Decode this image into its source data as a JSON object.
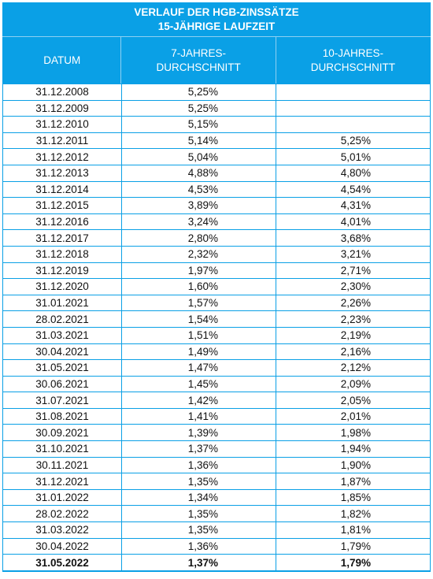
{
  "title": {
    "line1": "VERLAUF DER HGB-ZINSSÄTZE",
    "line2": "15-JÄHRIGE LAUFZEIT"
  },
  "columns": {
    "date": "DATUM",
    "avg7_line1": "7-JAHRES-",
    "avg7_line2": "DURCHSCHNITT",
    "avg10_line1": "10-JAHRES-",
    "avg10_line2": "DURCHSCHNITT"
  },
  "rows": [
    {
      "date": "31.12.2008",
      "avg7": "5,25%",
      "avg10": ""
    },
    {
      "date": "31.12.2009",
      "avg7": "5,25%",
      "avg10": ""
    },
    {
      "date": "31.12.2010",
      "avg7": "5,15%",
      "avg10": ""
    },
    {
      "date": "31.12.2011",
      "avg7": "5,14%",
      "avg10": "5,25%"
    },
    {
      "date": "31.12.2012",
      "avg7": "5,04%",
      "avg10": "5,01%"
    },
    {
      "date": "31.12.2013",
      "avg7": "4,88%",
      "avg10": "4,80%"
    },
    {
      "date": "31.12.2014",
      "avg7": "4,53%",
      "avg10": "4,54%"
    },
    {
      "date": "31.12.2015",
      "avg7": "3,89%",
      "avg10": "4,31%"
    },
    {
      "date": "31.12.2016",
      "avg7": "3,24%",
      "avg10": "4,01%"
    },
    {
      "date": "31.12.2017",
      "avg7": "2,80%",
      "avg10": "3,68%"
    },
    {
      "date": "31.12.2018",
      "avg7": "2,32%",
      "avg10": "3,21%"
    },
    {
      "date": "31.12.2019",
      "avg7": "1,97%",
      "avg10": "2,71%"
    },
    {
      "date": "31.12.2020",
      "avg7": "1,60%",
      "avg10": "2,30%"
    },
    {
      "date": "31.01.2021",
      "avg7": "1,57%",
      "avg10": "2,26%"
    },
    {
      "date": "28.02.2021",
      "avg7": "1,54%",
      "avg10": "2,23%"
    },
    {
      "date": "31.03.2021",
      "avg7": "1,51%",
      "avg10": "2,19%"
    },
    {
      "date": "30.04.2021",
      "avg7": "1,49%",
      "avg10": "2,16%"
    },
    {
      "date": "31.05.2021",
      "avg7": "1,47%",
      "avg10": "2,12%"
    },
    {
      "date": "30.06.2021",
      "avg7": "1,45%",
      "avg10": "2,09%"
    },
    {
      "date": "31.07.2021",
      "avg7": "1,42%",
      "avg10": "2,05%"
    },
    {
      "date": "31.08.2021",
      "avg7": "1,41%",
      "avg10": "2,01%"
    },
    {
      "date": "30.09.2021",
      "avg7": "1,39%",
      "avg10": "1,98%"
    },
    {
      "date": "31.10.2021",
      "avg7": "1,37%",
      "avg10": "1,94%"
    },
    {
      "date": "30.11.2021",
      "avg7": "1,36%",
      "avg10": "1,90%"
    },
    {
      "date": "31.12.2021",
      "avg7": "1,35%",
      "avg10": "1,87%"
    },
    {
      "date": "31.01.2022",
      "avg7": "1,34%",
      "avg10": "1,85%"
    },
    {
      "date": "28.02.2022",
      "avg7": "1,35%",
      "avg10": "1,82%"
    },
    {
      "date": "31.03.2022",
      "avg7": "1,35%",
      "avg10": "1,81%"
    },
    {
      "date": "30.04.2022",
      "avg7": "1,36%",
      "avg10": "1,79%"
    },
    {
      "date": "31.05.2022",
      "avg7": "1,37%",
      "avg10": "1,79%"
    }
  ],
  "colors": {
    "header_bg": "#0aa0e6",
    "border": "#0aa0e6"
  }
}
